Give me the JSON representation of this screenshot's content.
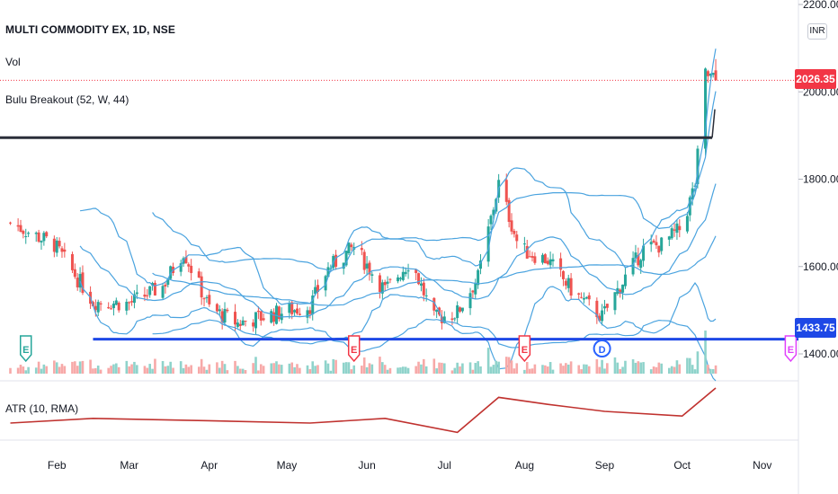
{
  "header": {
    "title": "MULTI COMMODITY EX, 1D, NSE",
    "volume_label": "Vol",
    "indicator_label": "Bulu Breakout (52, W, 44)",
    "atr_label": "ATR (10, RMA)",
    "currency": "INR"
  },
  "price_axis": {
    "ticks": [
      "2200.00",
      "2000.00",
      "1800.00",
      "1600.00",
      "1400.00"
    ],
    "last_price": "2026.35",
    "level_price": "1433.75"
  },
  "time_axis": {
    "labels": [
      "Feb",
      "Mar",
      "Apr",
      "May",
      "Jun",
      "Jul",
      "Aug",
      "Sep",
      "Oct",
      "Nov"
    ]
  },
  "events": [
    "E",
    "E",
    "E",
    "D",
    "E"
  ],
  "colors": {
    "up": "#26a69a",
    "down": "#ef5350",
    "bands": "#4aa3df",
    "atr": "#c0322f",
    "breakout_line": "#2a2e39",
    "support_line": "#1e48e6",
    "dividend": "#2962ff",
    "earnings": "#f23645"
  },
  "chart_data": {
    "type": "candlestick",
    "title": "MULTI COMMODITY EX, 1D, NSE",
    "ylim": [
      1400,
      2200
    ],
    "x_range": [
      "2022-01-10",
      "2022-11-15"
    ],
    "closes": [
      {
        "date": "2022-01-14",
        "close": 1700
      },
      {
        "date": "2022-01-31",
        "close": 1650
      },
      {
        "date": "2022-02-15",
        "close": 1520
      },
      {
        "date": "2022-03-01",
        "close": 1515
      },
      {
        "date": "2022-03-14",
        "close": 1555
      },
      {
        "date": "2022-03-22",
        "close": 1635
      },
      {
        "date": "2022-04-01",
        "close": 1505
      },
      {
        "date": "2022-04-12",
        "close": 1470
      },
      {
        "date": "2022-04-25",
        "close": 1490
      },
      {
        "date": "2022-05-10",
        "close": 1510
      },
      {
        "date": "2022-05-17",
        "close": 1595
      },
      {
        "date": "2022-05-27",
        "close": 1645
      },
      {
        "date": "2022-06-08",
        "close": 1545
      },
      {
        "date": "2022-06-18",
        "close": 1615
      },
      {
        "date": "2022-06-27",
        "close": 1480
      },
      {
        "date": "2022-07-06",
        "close": 1495
      },
      {
        "date": "2022-07-14",
        "close": 1575
      },
      {
        "date": "2022-07-22",
        "close": 1790
      },
      {
        "date": "2022-07-30",
        "close": 1640
      },
      {
        "date": "2022-08-10",
        "close": 1615
      },
      {
        "date": "2022-08-20",
        "close": 1540
      },
      {
        "date": "2022-08-31",
        "close": 1485
      },
      {
        "date": "2022-09-10",
        "close": 1585
      },
      {
        "date": "2022-09-16",
        "close": 1640
      },
      {
        "date": "2022-09-23",
        "close": 1650
      },
      {
        "date": "2022-10-01",
        "close": 1690
      },
      {
        "date": "2022-10-06",
        "close": 1790
      },
      {
        "date": "2022-10-10",
        "close": 2040
      },
      {
        "date": "2022-10-14",
        "close": 2026.35
      }
    ],
    "levels": [
      {
        "name": "Bulu Breakout",
        "value": 1895
      },
      {
        "name": "support",
        "value": 1433.75
      }
    ],
    "atr": [
      {
        "date": "2022-01-14",
        "value": 0.25
      },
      {
        "date": "2022-02-15",
        "value": 0.35
      },
      {
        "date": "2022-04-01",
        "value": 0.3
      },
      {
        "date": "2022-05-10",
        "value": 0.25
      },
      {
        "date": "2022-06-08",
        "value": 0.35
      },
      {
        "date": "2022-07-06",
        "value": 0.05
      },
      {
        "date": "2022-07-22",
        "value": 0.8
      },
      {
        "date": "2022-08-10",
        "value": 0.65
      },
      {
        "date": "2022-09-01",
        "value": 0.5
      },
      {
        "date": "2022-10-01",
        "value": 0.4
      },
      {
        "date": "2022-10-14",
        "value": 1.0
      }
    ]
  }
}
